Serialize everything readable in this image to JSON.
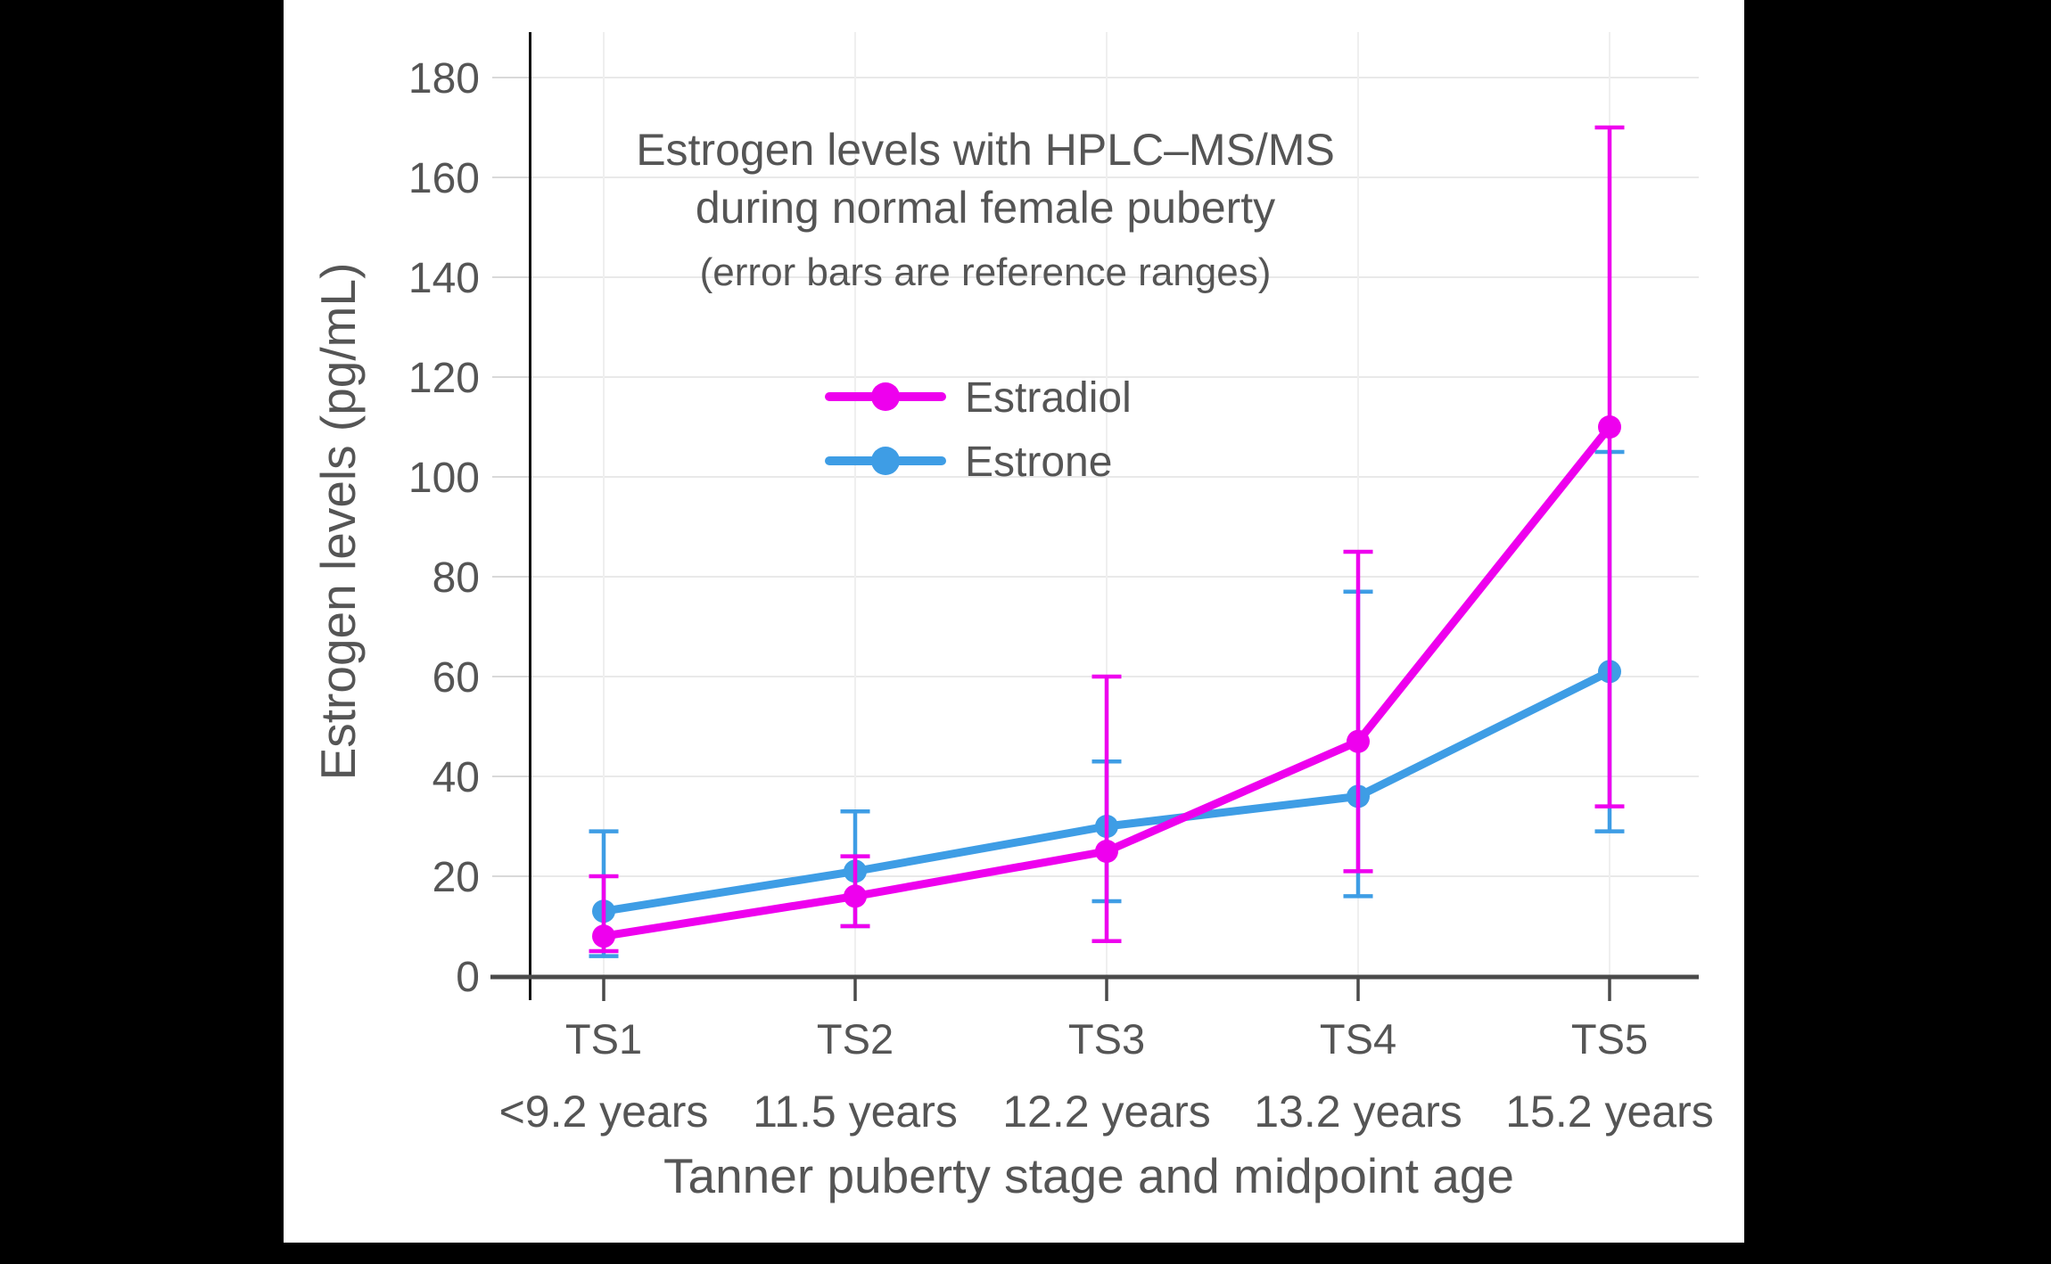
{
  "chart_data": {
    "type": "line",
    "title_lines": [
      "Estrogen levels with HPLC–MS/MS",
      "during normal female puberty"
    ],
    "subtitle": "(error bars are reference ranges)",
    "xlabel": "Tanner puberty stage and midpoint age",
    "ylabel": "Estrogen levels (pg/mL)",
    "ylim": [
      0,
      180
    ],
    "ytick_step": 20,
    "grid": true,
    "legend_position": "upper-left-inside",
    "categories": [
      "TS1",
      "TS2",
      "TS3",
      "TS4",
      "TS5"
    ],
    "category_sublabels": [
      "<9.2 years",
      "11.5 years",
      "12.2 years",
      "13.2 years",
      "15.2 years"
    ],
    "series": [
      {
        "name": "Estradiol",
        "color": "#EE00EE",
        "values": [
          8,
          16,
          25,
          47,
          110
        ],
        "err_low": [
          5,
          10,
          7,
          21,
          34
        ],
        "err_high": [
          20,
          24,
          60,
          85,
          170
        ]
      },
      {
        "name": "Estrone",
        "color": "#3E9DE5",
        "values": [
          13,
          21,
          30,
          36,
          61
        ],
        "err_low": [
          4,
          10,
          15,
          16,
          29
        ],
        "err_high": [
          29,
          33,
          43,
          77,
          105
        ]
      }
    ]
  },
  "colors": {
    "page_background": "#000000",
    "panel_background": "#ffffff",
    "grid_line": "#e9e9e9",
    "grid_line_vertical": "#efefef",
    "tick_line_light": "#d9d9d9",
    "axis_line": "#4a4a4a",
    "spine_line": "#141414",
    "text": "#555555"
  }
}
